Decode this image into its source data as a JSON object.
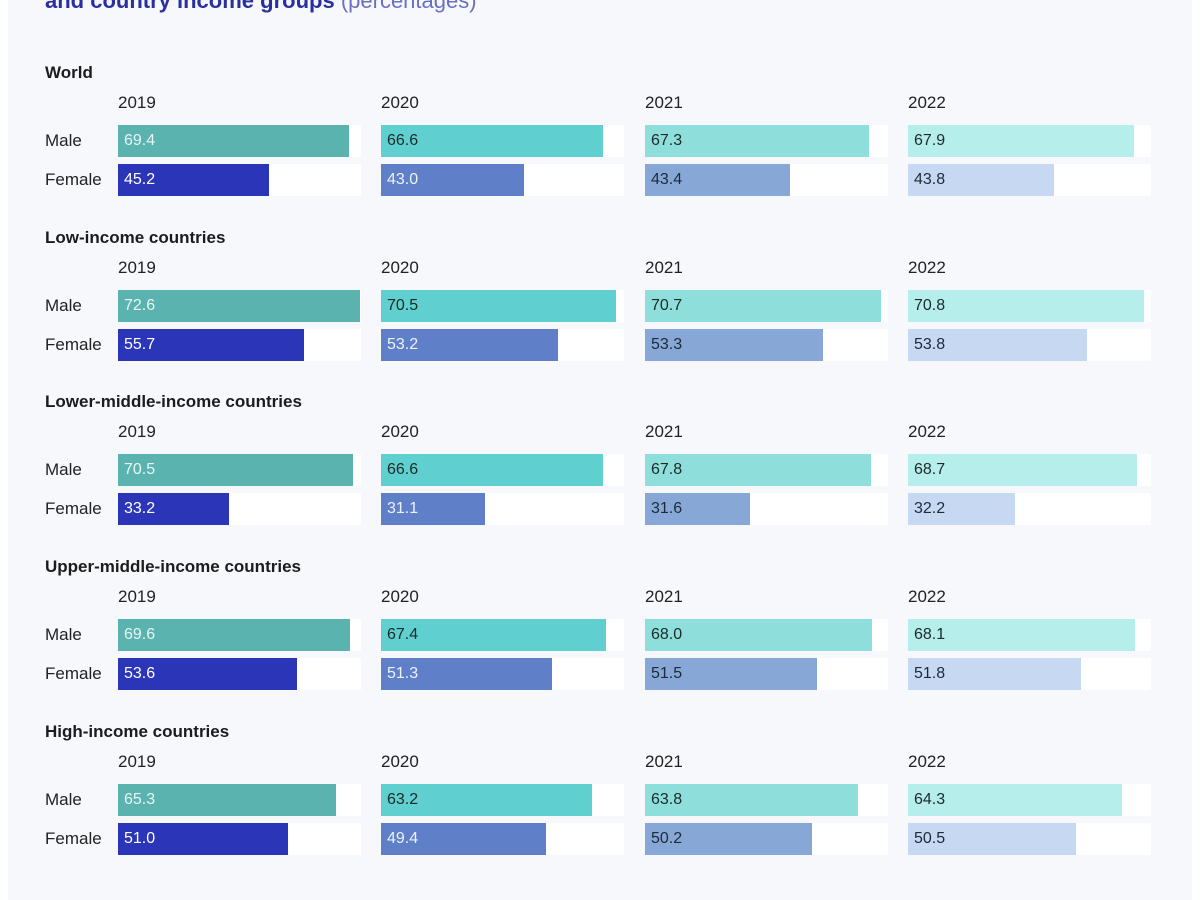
{
  "title": {
    "main": "and country income groups",
    "unit": "(percentages)"
  },
  "chart_data": {
    "type": "bar",
    "title": "and country income groups (percentages)",
    "years": [
      "2019",
      "2020",
      "2021",
      "2022"
    ],
    "row_labels": [
      "Male",
      "Female"
    ],
    "xlim": [
      0,
      73
    ],
    "colors": {
      "male": [
        "#5bb3b0",
        "#5fcfcf",
        "#8edfdb",
        "#b6eeec"
      ],
      "female": [
        "#2b35b8",
        "#5f80c8",
        "#87a7d7",
        "#c7d9f2"
      ],
      "male_text": [
        "#e8f7f6",
        "#1c2a2a",
        "#1c2a2a",
        "#1c2a2a"
      ],
      "female_text": [
        "#ffffff",
        "#eef2fb",
        "#1c2a3a",
        "#1c2a3a"
      ]
    },
    "groups": [
      {
        "name": "World",
        "male": [
          "69.4",
          "66.6",
          "67.3",
          "67.9"
        ],
        "female": [
          "45.2",
          "43.0",
          "43.4",
          "43.8"
        ]
      },
      {
        "name": "Low-income countries",
        "male": [
          "72.6",
          "70.5",
          "70.7",
          "70.8"
        ],
        "female": [
          "55.7",
          "53.2",
          "53.3",
          "53.8"
        ]
      },
      {
        "name": "Lower-middle-income countries",
        "male": [
          "70.5",
          "66.6",
          "67.8",
          "68.7"
        ],
        "female": [
          "33.2",
          "31.1",
          "31.6",
          "32.2"
        ]
      },
      {
        "name": "Upper-middle-income countries",
        "male": [
          "69.6",
          "67.4",
          "68.0",
          "68.1"
        ],
        "female": [
          "53.6",
          "51.3",
          "51.5",
          "51.8"
        ]
      },
      {
        "name": "High-income countries",
        "male": [
          "65.3",
          "63.2",
          "63.8",
          "64.3"
        ],
        "female": [
          "51.0",
          "49.4",
          "50.2",
          "50.5"
        ]
      }
    ]
  }
}
